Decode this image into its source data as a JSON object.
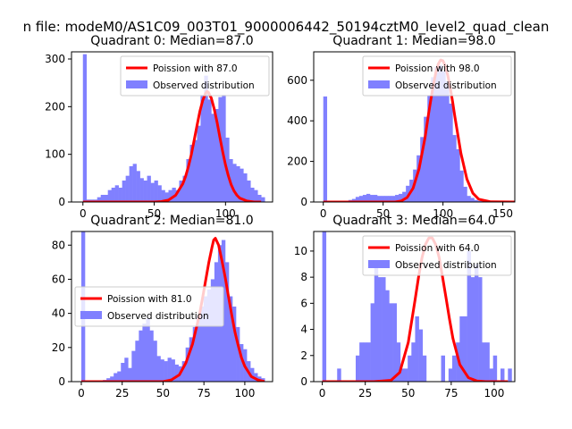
{
  "figure_title": "n file: modeM0/AS1C09_003T01_9000006442_50194cztM0_level2_quad_clean",
  "colors": {
    "hist": "#8080ff",
    "curve": "#ff0000",
    "axis": "#000000",
    "legend_bg": "#ffffff",
    "legend_edge": "#cccccc"
  },
  "chart_data": [
    {
      "type": "bar",
      "title": "Quadrant 0: Median=87.0",
      "xlim": [
        -8,
        133
      ],
      "ylim": [
        0,
        315
      ],
      "xticks": [
        0,
        50,
        100
      ],
      "yticks": [
        0,
        100,
        200,
        300
      ],
      "legend": {
        "location": "upper-right",
        "curve_label": "Poission with 87.0",
        "hist_label": "Observed distribution"
      },
      "series": [
        {
          "name": "Observed distribution",
          "type": "hist",
          "x": [
            0,
            2.5,
            5,
            7.5,
            10,
            12.5,
            15,
            17.5,
            20,
            22.5,
            25,
            27.5,
            30,
            32.5,
            35,
            37.5,
            40,
            42.5,
            45,
            47.5,
            50,
            52.5,
            55,
            57.5,
            60,
            62.5,
            65,
            67.5,
            70,
            72.5,
            75,
            77.5,
            80,
            82.5,
            85,
            87.5,
            90,
            92.5,
            95,
            97.5,
            100,
            102.5,
            105,
            107.5,
            110,
            112.5,
            115,
            117.5,
            120,
            122.5,
            125
          ],
          "values": [
            310,
            5,
            5,
            5,
            10,
            15,
            15,
            25,
            30,
            35,
            30,
            45,
            55,
            75,
            80,
            65,
            50,
            45,
            55,
            40,
            45,
            35,
            25,
            20,
            25,
            30,
            25,
            45,
            55,
            90,
            120,
            130,
            160,
            225,
            265,
            215,
            185,
            195,
            220,
            225,
            135,
            90,
            80,
            75,
            70,
            60,
            45,
            30,
            25,
            15,
            10
          ]
        },
        {
          "name": "Poission with 87.0",
          "type": "line",
          "x": [
            0,
            10,
            20,
            30,
            40,
            50,
            55,
            60,
            65,
            70,
            72,
            74,
            76,
            78,
            80,
            82,
            84,
            86,
            87,
            88,
            90,
            92,
            94,
            96,
            98,
            100,
            102,
            104,
            106,
            108,
            110,
            115,
            120,
            125
          ],
          "values": [
            0,
            0,
            0,
            0,
            0,
            0,
            1,
            4,
            14,
            38,
            54,
            75,
            99,
            129,
            160,
            190,
            213,
            228,
            232,
            230,
            218,
            196,
            168,
            136,
            106,
            78,
            55,
            36,
            23,
            14,
            8,
            2,
            0,
            0
          ]
        }
      ]
    },
    {
      "type": "bar",
      "title": "Quadrant 1: Median=98.0",
      "xlim": [
        -8,
        160
      ],
      "ylim": [
        0,
        740
      ],
      "xticks": [
        0,
        50,
        100,
        150
      ],
      "yticks": [
        0,
        200,
        400,
        600
      ],
      "legend": {
        "location": "upper-right",
        "curve_label": "Poission with 98.0",
        "hist_label": "Observed distribution"
      },
      "series": [
        {
          "name": "Observed distribution",
          "type": "hist",
          "x": [
            0,
            3,
            6,
            9,
            12,
            15,
            18,
            21,
            24,
            27,
            30,
            33,
            36,
            39,
            42,
            45,
            48,
            51,
            54,
            57,
            60,
            63,
            66,
            69,
            72,
            75,
            78,
            81,
            84,
            87,
            90,
            93,
            96,
            99,
            102,
            105,
            108,
            111,
            114,
            117,
            120,
            123,
            126,
            129,
            132,
            135,
            138,
            141,
            144,
            147,
            150,
            153
          ],
          "values": [
            520,
            0,
            0,
            0,
            0,
            5,
            5,
            10,
            15,
            25,
            30,
            35,
            40,
            35,
            35,
            30,
            30,
            30,
            30,
            30,
            35,
            40,
            50,
            80,
            110,
            160,
            230,
            320,
            420,
            525,
            615,
            665,
            675,
            645,
            595,
            485,
            330,
            260,
            155,
            75,
            30,
            20,
            10,
            5,
            5,
            0,
            0,
            0,
            0,
            0,
            0,
            0
          ]
        },
        {
          "name": "Poission with 98.0",
          "type": "line",
          "x": [
            0,
            20,
            40,
            60,
            65,
            70,
            75,
            80,
            85,
            88,
            90,
            92,
            94,
            96,
            98,
            100,
            102,
            104,
            106,
            108,
            110,
            115,
            120,
            125,
            130,
            140,
            160
          ],
          "values": [
            0,
            0,
            0,
            0,
            5,
            22,
            68,
            164,
            318,
            437,
            510,
            578,
            636,
            679,
            700,
            696,
            670,
            624,
            564,
            494,
            419,
            240,
            113,
            43,
            13,
            1,
            0
          ]
        }
      ]
    },
    {
      "type": "bar",
      "title": "Quadrant 2: Median=81.0",
      "xlim": [
        -6,
        117
      ],
      "ylim": [
        0,
        88
      ],
      "xticks": [
        0,
        25,
        50,
        75,
        100
      ],
      "yticks": [
        0,
        20,
        40,
        60,
        80
      ],
      "legend": {
        "location": "center-left",
        "curve_label": "Poission with 81.0",
        "hist_label": "Observed distribution"
      },
      "series": [
        {
          "name": "Observed distribution",
          "type": "hist",
          "x": [
            0,
            2.2,
            4.4,
            6.6,
            8.8,
            11,
            13.2,
            15.4,
            17.6,
            19.8,
            22,
            24.2,
            26.4,
            28.6,
            30.8,
            33,
            35.2,
            37.4,
            39.6,
            41.8,
            44,
            46.2,
            48.4,
            50.6,
            52.8,
            55,
            57.2,
            59.4,
            61.6,
            63.8,
            66,
            68.2,
            70.4,
            72.6,
            74.8,
            77,
            79.2,
            81.4,
            83.6,
            85.8,
            88,
            90.2,
            92.4,
            94.6,
            96.8,
            99,
            101.2,
            103.4,
            105.6,
            107.8,
            110
          ],
          "values": [
            88,
            0,
            0,
            0,
            0,
            0,
            1,
            2,
            3,
            5,
            6,
            11,
            14,
            8,
            18,
            24,
            30,
            34,
            37,
            30,
            24,
            15,
            13,
            12,
            14,
            13,
            10,
            9,
            12,
            20,
            26,
            32,
            38,
            44,
            50,
            54,
            60,
            70,
            80,
            83,
            70,
            50,
            44,
            32,
            22,
            19,
            12,
            8,
            5,
            3,
            2
          ]
        },
        {
          "name": "Poission with 81.0",
          "type": "line",
          "x": [
            0,
            20,
            40,
            50,
            55,
            60,
            64,
            68,
            70,
            72,
            74,
            76,
            78,
            80,
            81,
            82,
            84,
            86,
            88,
            90,
            92,
            94,
            96,
            98,
            100,
            104,
            108,
            112
          ],
          "values": [
            0,
            0,
            0,
            0,
            1,
            4,
            11,
            22,
            30,
            38,
            48,
            59,
            70,
            79,
            83,
            84,
            80,
            71,
            61,
            50,
            39,
            29,
            21,
            14,
            9,
            3,
            1,
            0
          ]
        }
      ]
    },
    {
      "type": "bar",
      "title": "Quadrant 3: Median=64.0",
      "xlim": [
        -5,
        112
      ],
      "ylim": [
        0,
        11.5
      ],
      "xticks": [
        0,
        25,
        50,
        75,
        100
      ],
      "yticks": [
        0,
        2,
        4,
        6,
        8,
        10
      ],
      "legend": {
        "location": "upper-right",
        "curve_label": "Poission with 64.0",
        "hist_label": "Observed distribution"
      },
      "series": [
        {
          "name": "Observed distribution",
          "type": "hist",
          "x": [
            0,
            2.16,
            4.32,
            6.48,
            8.64,
            10.8,
            12.96,
            15.12,
            17.28,
            19.44,
            21.6,
            23.76,
            25.92,
            28.08,
            30.24,
            32.4,
            34.56,
            36.72,
            38.88,
            41.04,
            43.2,
            45.36,
            47.52,
            49.68,
            51.84,
            54,
            56.16,
            58.32,
            60.48,
            62.64,
            64.8,
            66.96,
            69.12,
            71.28,
            73.44,
            75.6,
            77.76,
            79.92,
            82.08,
            84.24,
            86.4,
            88.56,
            90.72,
            92.88,
            95.04,
            97.2,
            99.36,
            101.52,
            103.68,
            105.84,
            108
          ],
          "values": [
            12,
            0,
            0,
            0,
            1,
            0,
            0,
            0,
            0,
            2,
            3,
            3,
            3,
            6,
            9,
            8,
            8,
            7,
            6,
            6,
            3,
            1,
            1,
            2,
            3,
            5,
            4,
            2,
            0,
            0,
            0,
            0,
            2,
            0,
            1,
            2,
            3,
            5,
            5,
            10,
            8,
            9,
            8,
            3,
            3,
            1,
            2,
            0,
            1,
            0,
            1
          ]
        },
        {
          "name": "Poission with 64.0",
          "type": "line",
          "x": [
            0,
            20,
            30,
            40,
            45,
            50,
            54,
            56,
            58,
            60,
            62,
            64,
            66,
            68,
            70,
            72,
            74,
            76,
            80,
            85,
            90,
            95,
            100,
            108
          ],
          "values": [
            0,
            0,
            0,
            0.1,
            0.7,
            3.0,
            6.3,
            8.0,
            9.5,
            10.5,
            11.0,
            11.0,
            10.5,
            9.5,
            8.0,
            6.4,
            4.8,
            3.3,
            1.3,
            0.3,
            0.05,
            0,
            0,
            0
          ]
        }
      ]
    }
  ]
}
